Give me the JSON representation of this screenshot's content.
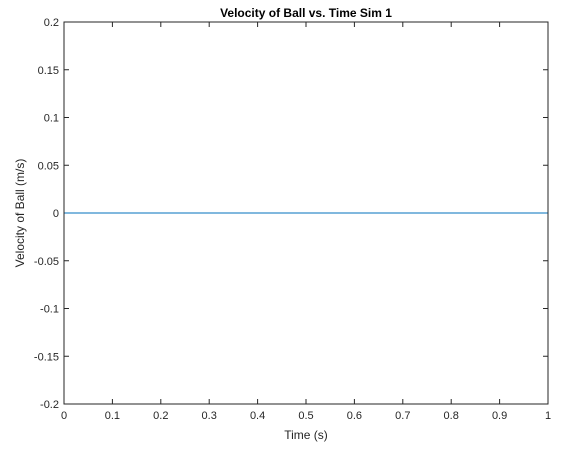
{
  "chart_data": {
    "type": "line",
    "title": "Velocity of Ball vs. Time Sim 1",
    "xlabel": "Time (s)",
    "ylabel": "Velocity of Ball (m/s)",
    "xlim": [
      0,
      1
    ],
    "ylim": [
      -0.2,
      0.2
    ],
    "x_ticks": [
      "0",
      "0.1",
      "0.2",
      "0.3",
      "0.4",
      "0.5",
      "0.6",
      "0.7",
      "0.8",
      "0.9",
      "1"
    ],
    "y_ticks": [
      "0.2",
      "0.15",
      "0.1",
      "0.05",
      "0",
      "-0.05",
      "-0.1",
      "-0.15",
      "-0.2"
    ],
    "grid": false,
    "series": [
      {
        "color": "#0072BD",
        "x": [
          0,
          1
        ],
        "y": [
          0,
          0
        ]
      }
    ]
  }
}
